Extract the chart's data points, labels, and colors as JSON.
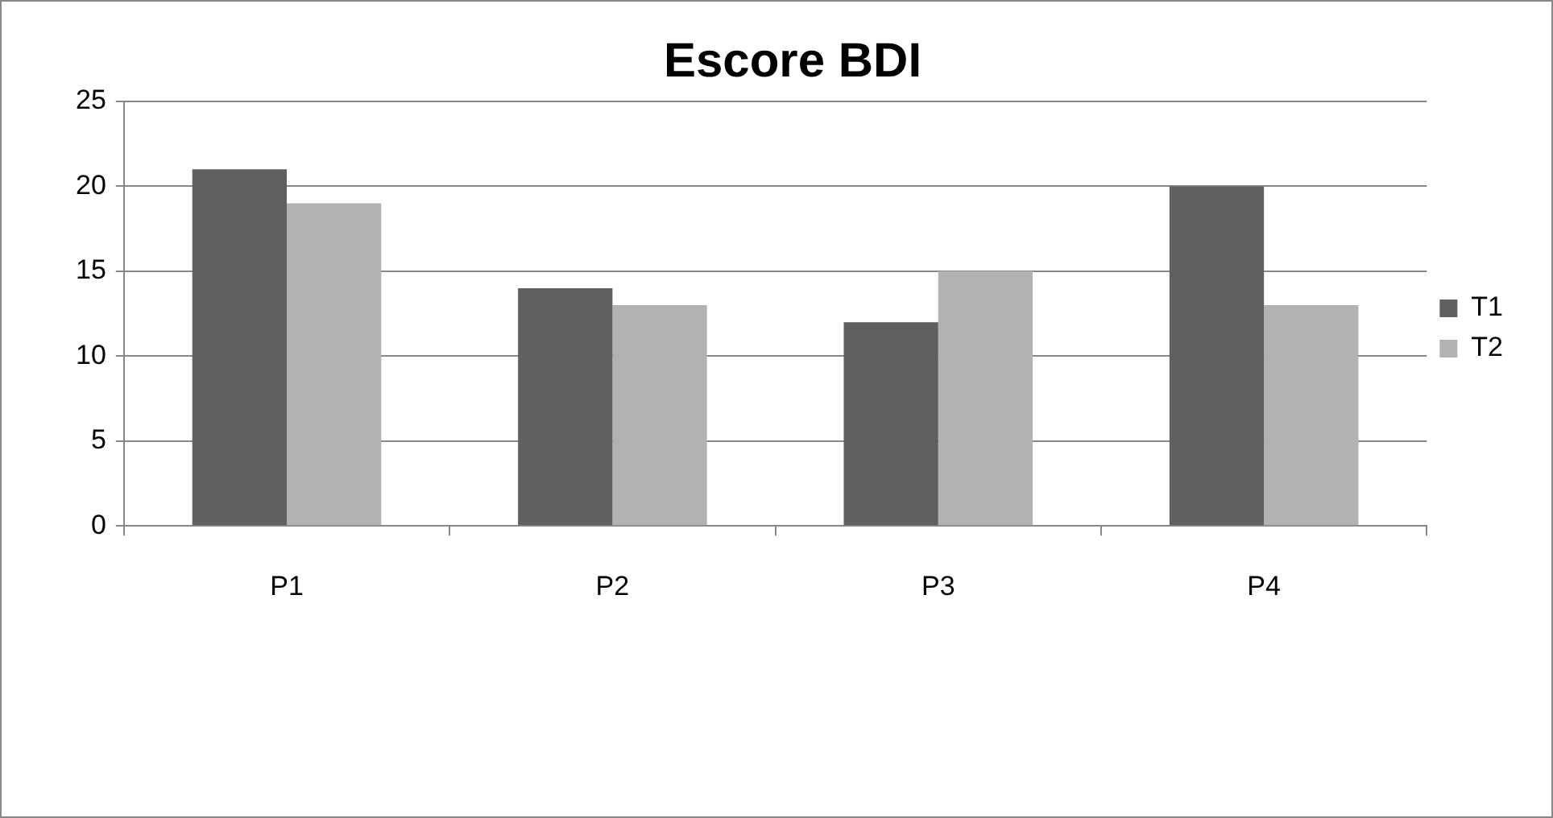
{
  "chart_data": {
    "type": "bar",
    "title": "Escore BDI",
    "categories": [
      "P1",
      "P2",
      "P3",
      "P4"
    ],
    "series": [
      {
        "name": "T1",
        "color": "#606060",
        "values": [
          21,
          14,
          12,
          20
        ]
      },
      {
        "name": "T2",
        "color": "#b2b2b2",
        "values": [
          19,
          13,
          15,
          13
        ]
      }
    ],
    "ylim": [
      0,
      25
    ],
    "yticks": [
      0,
      5,
      10,
      15,
      20,
      25
    ],
    "grid": "y",
    "legend": "right"
  }
}
